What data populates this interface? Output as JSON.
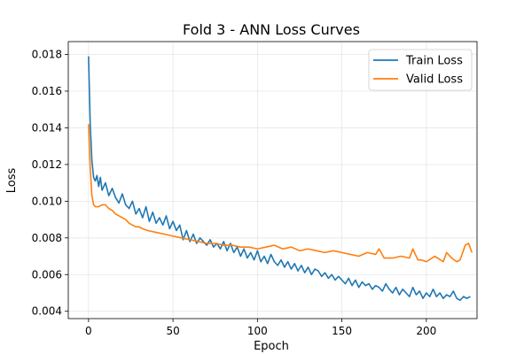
{
  "chart_data": {
    "type": "line",
    "title": "Fold 3 - ANN Loss Curves",
    "xlabel": "Epoch",
    "ylabel": "Loss",
    "xlim": [
      -12,
      230
    ],
    "ylim": [
      0.0036,
      0.0187
    ],
    "xticks": [
      0,
      50,
      100,
      150,
      200
    ],
    "xtick_labels": [
      "0",
      "50",
      "100",
      "150",
      "200"
    ],
    "yticks": [
      0.004,
      0.006,
      0.008,
      0.01,
      0.012,
      0.014,
      0.016,
      0.018
    ],
    "ytick_labels": [
      "0.004",
      "0.006",
      "0.008",
      "0.010",
      "0.012",
      "0.014",
      "0.016",
      "0.018"
    ],
    "grid": true,
    "legend_position": "top-right",
    "series": [
      {
        "name": "Train Loss",
        "color": "#1f77b4",
        "x": [
          0,
          1,
          2,
          3,
          4,
          5,
          6,
          7,
          8,
          10,
          12,
          14,
          16,
          18,
          20,
          22,
          24,
          26,
          28,
          30,
          32,
          34,
          36,
          38,
          40,
          42,
          44,
          46,
          48,
          50,
          52,
          54,
          56,
          58,
          60,
          62,
          64,
          66,
          68,
          70,
          72,
          74,
          76,
          78,
          80,
          82,
          84,
          86,
          88,
          90,
          92,
          94,
          96,
          98,
          100,
          102,
          104,
          106,
          108,
          110,
          112,
          114,
          116,
          118,
          120,
          122,
          124,
          126,
          128,
          130,
          132,
          134,
          136,
          138,
          140,
          142,
          144,
          146,
          148,
          150,
          152,
          154,
          156,
          158,
          160,
          162,
          164,
          166,
          168,
          170,
          172,
          174,
          176,
          178,
          180,
          182,
          184,
          186,
          188,
          190,
          192,
          194,
          196,
          198,
          200,
          202,
          204,
          206,
          208,
          210,
          212,
          214,
          216,
          218,
          220,
          222,
          224,
          226
        ],
        "y": [
          0.0179,
          0.0142,
          0.0122,
          0.0113,
          0.0111,
          0.0114,
          0.0108,
          0.0113,
          0.0106,
          0.011,
          0.0103,
          0.0107,
          0.0102,
          0.0099,
          0.0104,
          0.0098,
          0.0096,
          0.01,
          0.0093,
          0.0096,
          0.0091,
          0.0097,
          0.0089,
          0.0094,
          0.0088,
          0.0091,
          0.0087,
          0.0092,
          0.0085,
          0.0089,
          0.0084,
          0.0087,
          0.0079,
          0.0084,
          0.0078,
          0.0082,
          0.0077,
          0.008,
          0.0078,
          0.0076,
          0.0079,
          0.0075,
          0.0077,
          0.0074,
          0.0078,
          0.0073,
          0.0077,
          0.0072,
          0.0075,
          0.007,
          0.0074,
          0.0069,
          0.0072,
          0.0068,
          0.0073,
          0.0067,
          0.007,
          0.0066,
          0.0071,
          0.0067,
          0.0065,
          0.0068,
          0.0064,
          0.0067,
          0.0063,
          0.0066,
          0.0062,
          0.0065,
          0.0061,
          0.0064,
          0.006,
          0.0063,
          0.0062,
          0.0059,
          0.0061,
          0.0058,
          0.006,
          0.0057,
          0.0059,
          0.0057,
          0.0055,
          0.0058,
          0.0054,
          0.0057,
          0.0053,
          0.0056,
          0.0054,
          0.0055,
          0.0052,
          0.0054,
          0.0053,
          0.0051,
          0.0055,
          0.0052,
          0.005,
          0.0053,
          0.0049,
          0.0052,
          0.005,
          0.0048,
          0.0053,
          0.0049,
          0.0051,
          0.0047,
          0.005,
          0.0048,
          0.0052,
          0.0048,
          0.005,
          0.0047,
          0.0049,
          0.0048,
          0.0051,
          0.0047,
          0.0046,
          0.0048,
          0.0047,
          0.0048
        ]
      },
      {
        "name": "Valid Loss",
        "color": "#ff7f0e",
        "x": [
          0,
          1,
          2,
          3,
          4,
          6,
          8,
          10,
          12,
          14,
          16,
          18,
          20,
          22,
          24,
          26,
          28,
          30,
          32,
          35,
          40,
          45,
          50,
          55,
          60,
          65,
          70,
          75,
          80,
          85,
          90,
          95,
          100,
          105,
          110,
          115,
          120,
          125,
          130,
          135,
          140,
          145,
          150,
          155,
          160,
          165,
          170,
          172,
          175,
          180,
          185,
          190,
          192,
          195,
          197,
          200,
          205,
          210,
          212,
          215,
          218,
          220,
          223,
          225,
          227
        ],
        "y": [
          0.0142,
          0.0118,
          0.0103,
          0.0098,
          0.0097,
          0.0097,
          0.0098,
          0.0098,
          0.0096,
          0.0095,
          0.0093,
          0.0092,
          0.0091,
          0.009,
          0.0088,
          0.0087,
          0.0086,
          0.0086,
          0.0085,
          0.0084,
          0.0083,
          0.0082,
          0.0081,
          0.008,
          0.0079,
          0.0078,
          0.0077,
          0.0077,
          0.0076,
          0.0076,
          0.0075,
          0.0075,
          0.0074,
          0.0075,
          0.0076,
          0.0074,
          0.0075,
          0.0073,
          0.0074,
          0.0073,
          0.0072,
          0.0073,
          0.0072,
          0.0071,
          0.007,
          0.0072,
          0.0071,
          0.0074,
          0.0069,
          0.0069,
          0.007,
          0.0069,
          0.0074,
          0.0068,
          0.0068,
          0.0067,
          0.007,
          0.0067,
          0.0072,
          0.0069,
          0.0067,
          0.0068,
          0.0076,
          0.0077,
          0.0072
        ]
      }
    ]
  }
}
